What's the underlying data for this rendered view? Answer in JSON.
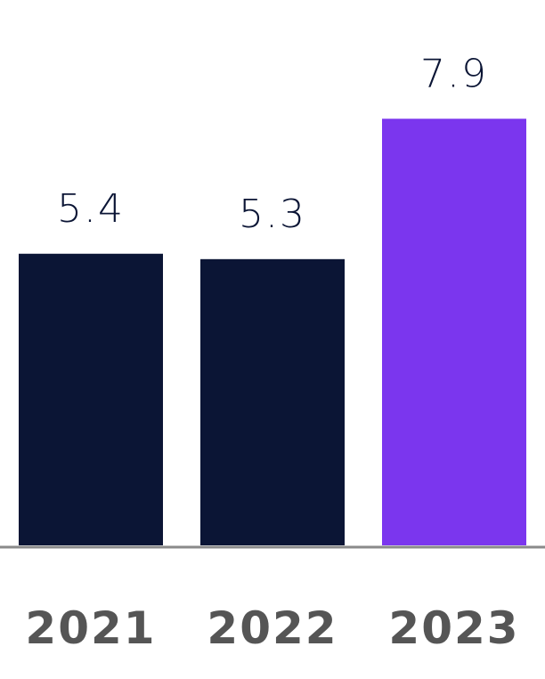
{
  "chart_data": {
    "type": "bar",
    "categories": [
      "2021",
      "2022",
      "2023"
    ],
    "values": [
      5.4,
      5.3,
      7.9
    ],
    "colors": [
      "#0b1535",
      "#0b1535",
      "#7b36ee"
    ]
  }
}
